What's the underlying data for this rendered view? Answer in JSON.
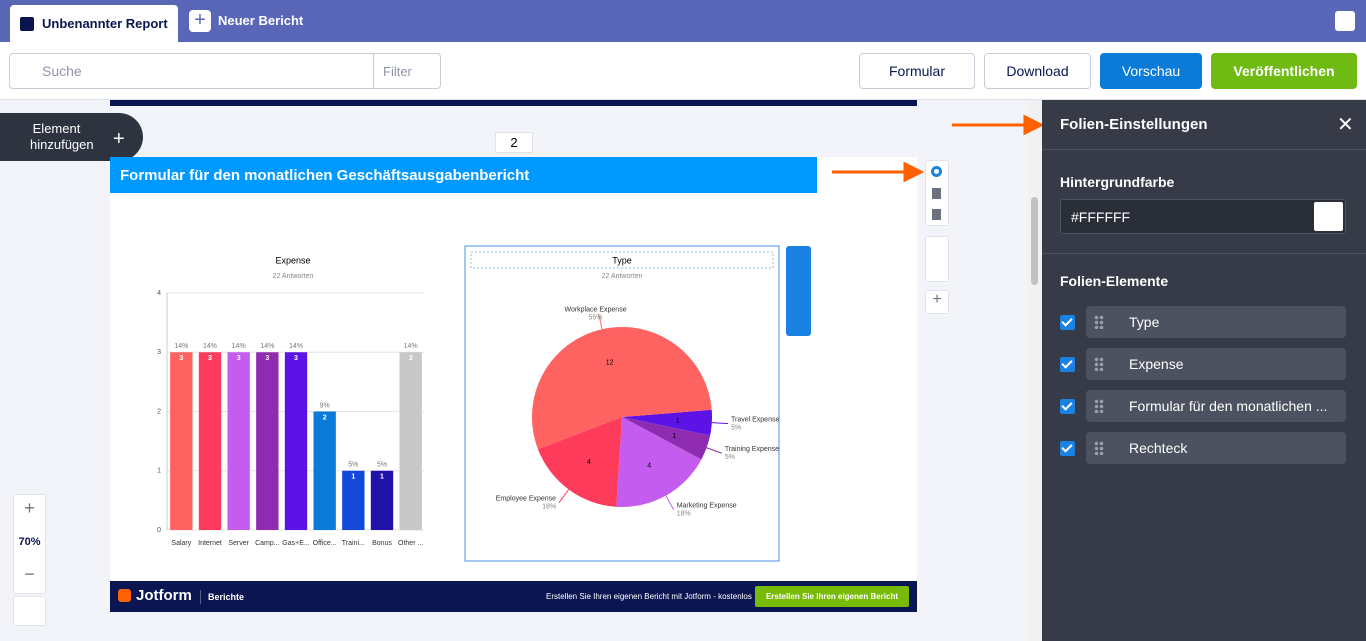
{
  "tabs": {
    "active": "Unbenannter Report",
    "new": "Neuer Bericht"
  },
  "toolbar": {
    "search": "Suche",
    "filter": "Filter",
    "form": "Formular",
    "download": "Download",
    "preview": "Vorschau",
    "publish": "Veröffentlichen"
  },
  "canvas": {
    "add_element": "Element hinzufügen",
    "zoom": "70%",
    "page_number": "2"
  },
  "slide": {
    "header": "Formular für den monatlichen Geschäftsausgabenbericht",
    "footer": {
      "brand": "Jotform",
      "section": "Berichte",
      "promo": "Erstellen Sie Ihren eigenen Bericht mit Jotform - kostenlos",
      "button": "Erstellen Sie Ihren eigenen Bericht"
    }
  },
  "chart_data": [
    {
      "type": "bar",
      "title": "Expense",
      "subtitle": "22 Antworten",
      "categories": [
        "Salary",
        "Internet",
        "Server",
        "Camp...",
        "Gas+E...",
        "Office...",
        "Traini...",
        "Bonus",
        "Other ..."
      ],
      "values": [
        3,
        3,
        3,
        3,
        3,
        2,
        1,
        1,
        3
      ],
      "percent_labels": [
        "14%",
        "14%",
        "14%",
        "14%",
        "14%",
        "9%",
        "5%",
        "5%",
        "14%"
      ],
      "colors": [
        "#ff6361",
        "#ff3b5c",
        "#c55cf0",
        "#8e2bb0",
        "#5b13e6",
        "#0a7bd8",
        "#1448d8",
        "#2012a8",
        "#c8c8c8"
      ],
      "ylim": [
        0,
        4
      ],
      "yticks": [
        0,
        1,
        2,
        3,
        4
      ],
      "grid": true
    },
    {
      "type": "pie",
      "title": "Type",
      "subtitle": "22 Antworten",
      "categories": [
        "Travel Expense",
        "Training Expense",
        "Marketing Expense",
        "Employee Expense",
        "Workplace Expense"
      ],
      "values": [
        1,
        1,
        4,
        4,
        12
      ],
      "percent_labels": [
        "5%",
        "5%",
        "18%",
        "18%",
        "55%"
      ],
      "colors": [
        "#5b13e6",
        "#8e2bb0",
        "#c55cf0",
        "#ff3b5c",
        "#ff6361"
      ]
    }
  ],
  "panel": {
    "title": "Folien-Einstellungen",
    "background_label": "Hintergrundfarbe",
    "background_value": "#FFFFFF",
    "elements_label": "Folien-Elemente",
    "elements": [
      "Type",
      "Expense",
      "Formular für den monatlichen ...",
      "Rechteck"
    ]
  }
}
